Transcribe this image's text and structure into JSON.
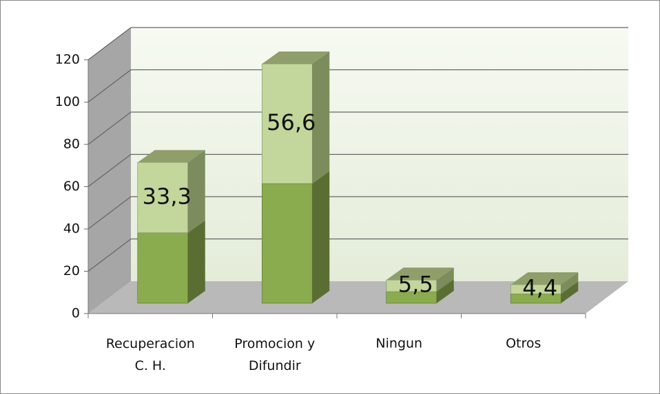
{
  "chart_data": {
    "type": "bar3d_stacked",
    "categories": [
      "Recuperacion C. H.",
      "Promocion y Difundir",
      "Ningun",
      "Otros"
    ],
    "series": [
      {
        "color": "#8aab4e",
        "values": [
          33.3,
          56.6,
          5.5,
          4.4
        ]
      },
      {
        "color": "#c3d69b",
        "values": [
          33.3,
          56.6,
          5.5,
          4.4
        ],
        "value_labels": [
          "33,3",
          "56,6",
          "5,5",
          "4,4"
        ]
      }
    ],
    "ylim": [
      0,
      120
    ],
    "yticks": [
      0,
      20,
      40,
      60,
      80,
      100,
      120
    ],
    "grid": true
  }
}
